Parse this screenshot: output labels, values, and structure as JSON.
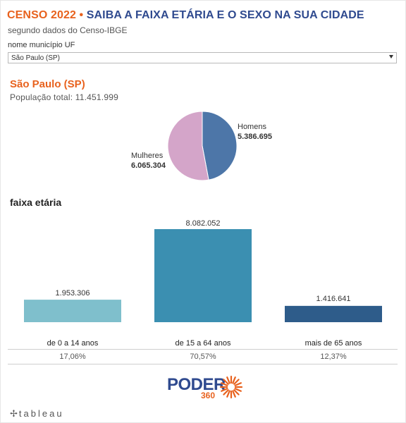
{
  "header": {
    "title_part1": "CENSO 2022 •",
    "title_part2": "SAIBA A FAIXA ETÁRIA E O SEXO NA SUA CIDADE",
    "subtitle": "segundo dados do Censo-IBGE"
  },
  "filter": {
    "label": "nome município UF",
    "selected": "São Paulo (SP)"
  },
  "city": {
    "name": "São Paulo (SP)",
    "population_text": "População total: 11.451.999"
  },
  "colors": {
    "orange": "#e8621e",
    "navy": "#2f4a8f",
    "homens": "#4d76a8",
    "mulheres": "#d4a5c9",
    "bar_0_14": "#7fbfcc",
    "bar_15_64": "#3b8fb1",
    "bar_65": "#2e5c8a"
  },
  "chart_data": [
    {
      "type": "pie",
      "slices": [
        {
          "name": "Homens",
          "value": 5386695,
          "label": "5.386.695"
        },
        {
          "name": "Mulheres",
          "value": 6065304,
          "label": "6.065.304"
        }
      ]
    },
    {
      "type": "bar",
      "title": "faixa etária",
      "categories": [
        "de 0 a 14 anos",
        "de 15 a 64 anos",
        "mais de 65 anos"
      ],
      "values": [
        1953306,
        8082052,
        1416641
      ],
      "value_labels": [
        "1.953.306",
        "8.082.052",
        "1.416.641"
      ],
      "percent_labels": [
        "17,06%",
        "70,57%",
        "12,37%"
      ]
    }
  ],
  "footer": {
    "logo_word": "PODER",
    "logo_number": "360",
    "tableau": "tableau"
  }
}
